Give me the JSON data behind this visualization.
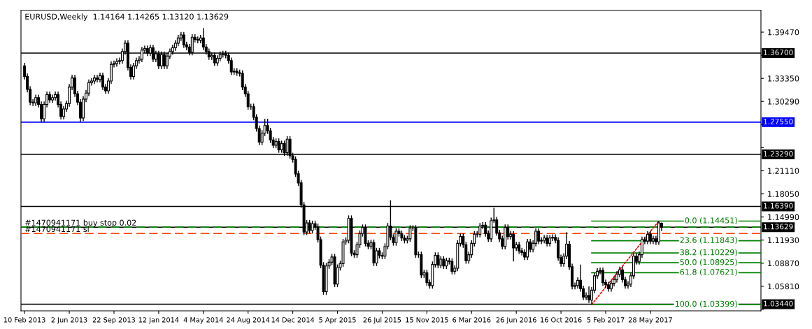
{
  "chart_data": {
    "type": "candlestick",
    "title": "EURUSD,Weekly  1.14164 1.14265 1.13120 1.13629",
    "color": "#000000",
    "x": [
      "2013-02-10",
      "2013-02-17",
      "2013-02-24",
      "2013-03-03",
      "2013-03-10",
      "2013-03-17",
      "2013-03-24",
      "2013-03-31",
      "2013-04-07",
      "2013-04-14",
      "2013-04-21",
      "2013-04-28",
      "2013-05-05",
      "2013-05-12",
      "2013-05-19",
      "2013-05-26",
      "2013-06-02",
      "2013-06-09",
      "2013-06-16",
      "2013-06-23",
      "2013-06-30",
      "2013-07-07",
      "2013-07-14",
      "2013-07-21",
      "2013-07-28",
      "2013-08-04",
      "2013-08-11",
      "2013-08-18",
      "2013-08-25",
      "2013-09-01",
      "2013-09-08",
      "2013-09-15",
      "2013-09-22",
      "2013-09-29",
      "2013-10-06",
      "2013-10-13",
      "2013-10-20",
      "2013-10-27",
      "2013-11-03",
      "2013-11-10",
      "2013-11-17",
      "2013-11-24",
      "2013-12-01",
      "2013-12-08",
      "2013-12-15",
      "2013-12-22",
      "2013-12-29",
      "2014-01-05",
      "2014-01-12",
      "2014-01-19",
      "2014-01-26",
      "2014-02-02",
      "2014-02-09",
      "2014-02-16",
      "2014-02-23",
      "2014-03-02",
      "2014-03-09",
      "2014-03-16",
      "2014-03-23",
      "2014-03-30",
      "2014-04-06",
      "2014-04-13",
      "2014-04-20",
      "2014-04-27",
      "2014-05-04",
      "2014-05-11",
      "2014-05-18",
      "2014-05-25",
      "2014-06-01",
      "2014-06-08",
      "2014-06-15",
      "2014-06-22",
      "2014-06-29",
      "2014-07-06",
      "2014-07-13",
      "2014-07-20",
      "2014-07-27",
      "2014-08-03",
      "2014-08-10",
      "2014-08-17",
      "2014-08-24",
      "2014-08-31",
      "2014-09-07",
      "2014-09-14",
      "2014-09-21",
      "2014-09-28",
      "2014-10-05",
      "2014-10-12",
      "2014-10-19",
      "2014-10-26",
      "2014-11-02",
      "2014-11-09",
      "2014-11-16",
      "2014-11-23",
      "2014-11-30",
      "2014-12-07",
      "2014-12-14",
      "2014-12-21",
      "2014-12-28",
      "2015-01-04",
      "2015-01-11",
      "2015-01-18",
      "2015-01-25",
      "2015-02-01",
      "2015-02-08",
      "2015-02-15",
      "2015-02-22",
      "2015-03-01",
      "2015-03-08",
      "2015-03-15",
      "2015-03-22",
      "2015-03-29",
      "2015-04-05",
      "2015-04-12",
      "2015-04-19",
      "2015-04-26",
      "2015-05-03",
      "2015-05-10",
      "2015-05-17",
      "2015-05-24",
      "2015-05-31",
      "2015-06-07",
      "2015-06-14",
      "2015-06-21",
      "2015-06-28",
      "2015-07-05",
      "2015-07-12",
      "2015-07-19",
      "2015-07-26",
      "2015-08-02",
      "2015-08-09",
      "2015-08-16",
      "2015-08-23",
      "2015-08-30",
      "2015-09-06",
      "2015-09-13",
      "2015-09-20",
      "2015-09-27",
      "2015-10-04",
      "2015-10-11",
      "2015-10-18",
      "2015-10-25",
      "2015-11-01",
      "2015-11-08",
      "2015-11-15",
      "2015-11-22",
      "2015-11-29",
      "2015-12-06",
      "2015-12-13",
      "2015-12-20",
      "2015-12-27",
      "2016-01-03",
      "2016-01-10",
      "2016-01-17",
      "2016-01-24",
      "2016-01-31",
      "2016-02-07",
      "2016-02-14",
      "2016-02-21",
      "2016-02-28",
      "2016-03-06",
      "2016-03-13",
      "2016-03-20",
      "2016-03-27",
      "2016-04-03",
      "2016-04-10",
      "2016-04-17",
      "2016-04-24",
      "2016-05-01",
      "2016-05-08",
      "2016-05-15",
      "2016-05-22",
      "2016-05-29",
      "2016-06-05",
      "2016-06-12",
      "2016-06-19",
      "2016-06-26",
      "2016-07-03",
      "2016-07-10",
      "2016-07-17",
      "2016-07-24",
      "2016-07-31",
      "2016-08-07",
      "2016-08-14",
      "2016-08-21",
      "2016-08-28",
      "2016-09-04",
      "2016-09-11",
      "2016-09-18",
      "2016-09-25",
      "2016-10-02",
      "2016-10-09",
      "2016-10-16",
      "2016-10-23",
      "2016-10-30",
      "2016-11-06",
      "2016-11-13",
      "2016-11-20",
      "2016-11-27",
      "2016-12-04",
      "2016-12-11",
      "2016-12-18",
      "2016-12-25",
      "2017-01-01",
      "2017-01-08",
      "2017-01-15",
      "2017-01-22",
      "2017-01-29",
      "2017-02-05",
      "2017-02-12",
      "2017-02-19",
      "2017-02-26",
      "2017-03-05",
      "2017-03-12",
      "2017-03-19",
      "2017-03-26",
      "2017-04-02",
      "2017-04-09",
      "2017-04-16",
      "2017-04-23",
      "2017-04-30",
      "2017-05-07",
      "2017-05-14",
      "2017-05-21",
      "2017-05-28",
      "2017-06-04",
      "2017-06-11",
      "2017-06-18",
      "2017-06-25"
    ],
    "ohlc": [
      [
        1.35,
        1.354,
        1.332,
        1.336
      ],
      [
        1.336,
        1.34,
        1.315,
        1.319
      ],
      [
        1.319,
        1.323,
        1.298,
        1.302
      ],
      [
        1.302,
        1.306,
        1.297,
        1.301
      ],
      [
        1.301,
        1.312,
        1.297,
        1.308
      ],
      [
        1.308,
        1.312,
        1.295,
        1.299
      ],
      [
        1.299,
        1.303,
        1.276,
        1.28
      ],
      [
        1.28,
        1.303,
        1.276,
        1.299
      ],
      [
        1.299,
        1.316,
        1.295,
        1.312
      ],
      [
        1.312,
        1.316,
        1.301,
        1.305
      ],
      [
        1.305,
        1.312,
        1.301,
        1.308
      ],
      [
        1.308,
        1.316,
        1.304,
        1.312
      ],
      [
        1.312,
        1.316,
        1.295,
        1.299
      ],
      [
        1.299,
        1.303,
        1.279,
        1.283
      ],
      [
        1.283,
        1.297,
        1.279,
        1.293
      ],
      [
        1.293,
        1.304,
        1.289,
        1.3
      ],
      [
        1.3,
        1.326,
        1.296,
        1.322
      ],
      [
        1.322,
        1.338,
        1.318,
        1.334
      ],
      [
        1.334,
        1.338,
        1.309,
        1.313
      ],
      [
        1.313,
        1.317,
        1.298,
        1.302
      ],
      [
        1.302,
        1.306,
        1.276,
        1.281
      ],
      [
        1.281,
        1.31,
        1.277,
        1.306
      ],
      [
        1.306,
        1.318,
        1.302,
        1.314
      ],
      [
        1.314,
        1.332,
        1.31,
        1.328
      ],
      [
        1.328,
        1.334,
        1.324,
        1.33
      ],
      [
        1.33,
        1.338,
        1.326,
        1.334
      ],
      [
        1.334,
        1.338,
        1.328,
        1.332
      ],
      [
        1.332,
        1.341,
        1.328,
        1.337
      ],
      [
        1.337,
        1.341,
        1.318,
        1.322
      ],
      [
        1.322,
        1.326,
        1.313,
        1.317
      ],
      [
        1.317,
        1.334,
        1.313,
        1.33
      ],
      [
        1.33,
        1.356,
        1.326,
        1.352
      ],
      [
        1.352,
        1.357,
        1.348,
        1.353
      ],
      [
        1.353,
        1.36,
        1.349,
        1.356
      ],
      [
        1.356,
        1.361,
        1.352,
        1.357
      ],
      [
        1.357,
        1.373,
        1.353,
        1.369
      ],
      [
        1.369,
        1.384,
        1.365,
        1.38
      ],
      [
        1.38,
        1.384,
        1.344,
        1.348
      ],
      [
        1.348,
        1.352,
        1.332,
        1.336
      ],
      [
        1.336,
        1.354,
        1.332,
        1.35
      ],
      [
        1.35,
        1.361,
        1.346,
        1.357
      ],
      [
        1.357,
        1.363,
        1.353,
        1.359
      ],
      [
        1.359,
        1.375,
        1.355,
        1.371
      ],
      [
        1.371,
        1.377,
        1.367,
        1.373
      ],
      [
        1.373,
        1.377,
        1.363,
        1.367
      ],
      [
        1.367,
        1.378,
        1.363,
        1.374
      ],
      [
        1.374,
        1.378,
        1.355,
        1.359
      ],
      [
        1.359,
        1.37,
        1.355,
        1.366
      ],
      [
        1.366,
        1.37,
        1.346,
        1.35
      ],
      [
        1.35,
        1.369,
        1.346,
        1.365
      ],
      [
        1.365,
        1.369,
        1.346,
        1.35
      ],
      [
        1.35,
        1.367,
        1.346,
        1.363
      ],
      [
        1.363,
        1.373,
        1.359,
        1.369
      ],
      [
        1.369,
        1.378,
        1.365,
        1.374
      ],
      [
        1.374,
        1.384,
        1.37,
        1.38
      ],
      [
        1.38,
        1.391,
        1.376,
        1.387
      ],
      [
        1.387,
        1.395,
        1.383,
        1.391
      ],
      [
        1.391,
        1.395,
        1.374,
        1.378
      ],
      [
        1.378,
        1.382,
        1.371,
        1.375
      ],
      [
        1.375,
        1.379,
        1.364,
        1.368
      ],
      [
        1.368,
        1.392,
        1.364,
        1.388
      ],
      [
        1.388,
        1.392,
        1.381,
        1.385
      ],
      [
        1.385,
        1.389,
        1.38,
        1.384
      ],
      [
        1.384,
        1.391,
        1.38,
        1.387
      ],
      [
        1.387,
        1.4,
        1.371,
        1.375
      ],
      [
        1.375,
        1.379,
        1.365,
        1.369
      ],
      [
        1.369,
        1.373,
        1.358,
        1.362
      ],
      [
        1.362,
        1.368,
        1.358,
        1.364
      ],
      [
        1.364,
        1.368,
        1.35,
        1.354
      ],
      [
        1.354,
        1.364,
        1.35,
        1.36
      ],
      [
        1.36,
        1.369,
        1.356,
        1.365
      ],
      [
        1.365,
        1.37,
        1.361,
        1.366
      ],
      [
        1.366,
        1.37,
        1.36,
        1.364
      ],
      [
        1.364,
        1.368,
        1.353,
        1.357
      ],
      [
        1.357,
        1.361,
        1.338,
        1.342
      ],
      [
        1.342,
        1.347,
        1.338,
        1.343
      ],
      [
        1.343,
        1.347,
        1.337,
        1.341
      ],
      [
        1.341,
        1.345,
        1.336,
        1.34
      ],
      [
        1.34,
        1.344,
        1.318,
        1.322
      ],
      [
        1.322,
        1.326,
        1.309,
        1.313
      ],
      [
        1.313,
        1.317,
        1.292,
        1.296
      ],
      [
        1.296,
        1.3,
        1.292,
        1.296
      ],
      [
        1.296,
        1.3,
        1.278,
        1.282
      ],
      [
        1.282,
        1.286,
        1.263,
        1.267
      ],
      [
        1.267,
        1.271,
        1.245,
        1.249
      ],
      [
        1.249,
        1.265,
        1.245,
        1.261
      ],
      [
        1.261,
        1.28,
        1.257,
        1.271
      ],
      [
        1.271,
        1.28,
        1.26,
        1.264
      ],
      [
        1.264,
        1.268,
        1.248,
        1.252
      ],
      [
        1.252,
        1.256,
        1.241,
        1.245
      ],
      [
        1.245,
        1.254,
        1.241,
        1.25
      ],
      [
        1.25,
        1.254,
        1.235,
        1.239
      ],
      [
        1.239,
        1.251,
        1.235,
        1.247
      ],
      [
        1.247,
        1.251,
        1.231,
        1.235
      ],
      [
        1.235,
        1.257,
        1.231,
        1.253
      ],
      [
        1.253,
        1.257,
        1.227,
        1.231
      ],
      [
        1.231,
        1.235,
        1.222,
        1.226
      ],
      [
        1.226,
        1.23,
        1.203,
        1.207
      ],
      [
        1.207,
        1.211,
        1.191,
        1.195
      ],
      [
        1.195,
        1.199,
        1.162,
        1.166
      ],
      [
        1.166,
        1.17,
        1.126,
        1.13
      ],
      [
        1.13,
        1.146,
        1.126,
        1.142
      ],
      [
        1.142,
        1.146,
        1.128,
        1.132
      ],
      [
        1.132,
        1.145,
        1.128,
        1.141
      ],
      [
        1.141,
        1.145,
        1.133,
        1.137
      ],
      [
        1.137,
        1.141,
        1.116,
        1.12
      ],
      [
        1.12,
        1.124,
        1.082,
        1.086
      ],
      [
        1.086,
        1.09,
        1.047,
        1.051
      ],
      [
        1.051,
        1.089,
        1.047,
        1.085
      ],
      [
        1.085,
        1.094,
        1.081,
        1.09
      ],
      [
        1.09,
        1.101,
        1.086,
        1.097
      ],
      [
        1.097,
        1.101,
        1.057,
        1.061
      ],
      [
        1.061,
        1.087,
        1.057,
        1.083
      ],
      [
        1.083,
        1.092,
        1.079,
        1.088
      ],
      [
        1.088,
        1.121,
        1.084,
        1.117
      ],
      [
        1.117,
        1.123,
        1.113,
        1.119
      ],
      [
        1.119,
        1.152,
        1.115,
        1.148
      ],
      [
        1.148,
        1.152,
        1.098,
        1.102
      ],
      [
        1.102,
        1.106,
        1.096,
        1.1
      ],
      [
        1.1,
        1.117,
        1.096,
        1.113
      ],
      [
        1.113,
        1.132,
        1.109,
        1.128
      ],
      [
        1.128,
        1.14,
        1.124,
        1.136
      ],
      [
        1.136,
        1.14,
        1.111,
        1.115
      ],
      [
        1.115,
        1.119,
        1.107,
        1.111
      ],
      [
        1.111,
        1.12,
        1.107,
        1.116
      ],
      [
        1.116,
        1.12,
        1.085,
        1.089
      ],
      [
        1.089,
        1.109,
        1.085,
        1.105
      ],
      [
        1.105,
        1.109,
        1.095,
        1.099
      ],
      [
        1.099,
        1.103,
        1.094,
        1.098
      ],
      [
        1.098,
        1.115,
        1.094,
        1.111
      ],
      [
        1.111,
        1.142,
        1.107,
        1.138
      ],
      [
        1.138,
        1.172,
        1.119,
        1.123
      ],
      [
        1.123,
        1.127,
        1.112,
        1.116
      ],
      [
        1.116,
        1.135,
        1.112,
        1.131
      ],
      [
        1.131,
        1.135,
        1.124,
        1.128
      ],
      [
        1.128,
        1.132,
        1.118,
        1.122
      ],
      [
        1.122,
        1.126,
        1.115,
        1.119
      ],
      [
        1.119,
        1.125,
        1.115,
        1.121
      ],
      [
        1.121,
        1.139,
        1.117,
        1.135
      ],
      [
        1.135,
        1.139,
        1.131,
        1.135
      ],
      [
        1.135,
        1.139,
        1.096,
        1.1
      ],
      [
        1.1,
        1.104,
        1.096,
        1.1
      ],
      [
        1.1,
        1.104,
        1.069,
        1.073
      ],
      [
        1.073,
        1.08,
        1.069,
        1.076
      ],
      [
        1.076,
        1.08,
        1.059,
        1.063
      ],
      [
        1.063,
        1.067,
        1.055,
        1.059
      ],
      [
        1.059,
        1.091,
        1.055,
        1.087
      ],
      [
        1.087,
        1.103,
        1.083,
        1.099
      ],
      [
        1.099,
        1.103,
        1.082,
        1.086
      ],
      [
        1.086,
        1.098,
        1.082,
        1.094
      ],
      [
        1.094,
        1.098,
        1.081,
        1.085
      ],
      [
        1.085,
        1.096,
        1.081,
        1.092
      ],
      [
        1.092,
        1.096,
        1.087,
        1.091
      ],
      [
        1.091,
        1.095,
        1.074,
        1.078
      ],
      [
        1.078,
        1.086,
        1.074,
        1.082
      ],
      [
        1.082,
        1.119,
        1.078,
        1.115
      ],
      [
        1.115,
        1.128,
        1.111,
        1.124
      ],
      [
        1.124,
        1.128,
        1.109,
        1.113
      ],
      [
        1.113,
        1.117,
        1.088,
        1.092
      ],
      [
        1.092,
        1.104,
        1.088,
        1.1
      ],
      [
        1.1,
        1.119,
        1.096,
        1.115
      ],
      [
        1.115,
        1.131,
        1.111,
        1.127
      ],
      [
        1.127,
        1.131,
        1.123,
        1.127
      ],
      [
        1.127,
        1.142,
        1.123,
        1.138
      ],
      [
        1.138,
        1.143,
        1.134,
        1.139
      ],
      [
        1.139,
        1.143,
        1.124,
        1.128
      ],
      [
        1.128,
        1.132,
        1.117,
        1.121
      ],
      [
        1.121,
        1.149,
        1.117,
        1.145
      ],
      [
        1.145,
        1.162,
        1.142,
        1.146
      ],
      [
        1.146,
        1.15,
        1.125,
        1.129
      ],
      [
        1.129,
        1.133,
        1.117,
        1.121
      ],
      [
        1.121,
        1.125,
        1.107,
        1.111
      ],
      [
        1.111,
        1.14,
        1.107,
        1.136
      ],
      [
        1.136,
        1.14,
        1.12,
        1.124
      ],
      [
        1.124,
        1.131,
        1.12,
        1.127
      ],
      [
        1.127,
        1.131,
        1.091,
        1.109
      ],
      [
        1.109,
        1.117,
        1.105,
        1.113
      ],
      [
        1.113,
        1.117,
        1.101,
        1.105
      ],
      [
        1.105,
        1.109,
        1.099,
        1.103
      ],
      [
        1.103,
        1.107,
        1.093,
        1.097
      ],
      [
        1.097,
        1.121,
        1.093,
        1.117
      ],
      [
        1.117,
        1.121,
        1.103,
        1.107
      ],
      [
        1.107,
        1.119,
        1.103,
        1.115
      ],
      [
        1.115,
        1.135,
        1.111,
        1.131
      ],
      [
        1.131,
        1.135,
        1.114,
        1.118
      ],
      [
        1.118,
        1.123,
        1.114,
        1.119
      ],
      [
        1.119,
        1.126,
        1.115,
        1.122
      ],
      [
        1.122,
        1.126,
        1.111,
        1.115
      ],
      [
        1.115,
        1.126,
        1.111,
        1.122
      ],
      [
        1.122,
        1.127,
        1.118,
        1.123
      ],
      [
        1.123,
        1.127,
        1.115,
        1.119
      ],
      [
        1.119,
        1.123,
        1.092,
        1.096
      ],
      [
        1.096,
        1.1,
        1.084,
        1.088
      ],
      [
        1.088,
        1.102,
        1.084,
        1.098
      ],
      [
        1.098,
        1.13,
        1.094,
        1.114
      ],
      [
        1.114,
        1.118,
        1.08,
        1.084
      ],
      [
        1.084,
        1.088,
        1.054,
        1.058
      ],
      [
        1.058,
        1.063,
        1.054,
        1.059
      ],
      [
        1.059,
        1.07,
        1.055,
        1.066
      ],
      [
        1.066,
        1.087,
        1.051,
        1.055
      ],
      [
        1.055,
        1.059,
        1.04,
        1.044
      ],
      [
        1.044,
        1.05,
        1.04,
        1.046
      ],
      [
        1.046,
        1.058,
        1.036,
        1.04
      ],
      [
        1.04,
        1.057,
        1.034,
        1.053
      ],
      [
        1.053,
        1.076,
        1.049,
        1.072
      ],
      [
        1.072,
        1.082,
        1.068,
        1.078
      ],
      [
        1.078,
        1.083,
        1.074,
        1.079
      ],
      [
        1.079,
        1.083,
        1.059,
        1.063
      ],
      [
        1.063,
        1.067,
        1.056,
        1.06
      ],
      [
        1.06,
        1.064,
        1.051,
        1.055
      ],
      [
        1.055,
        1.066,
        1.051,
        1.062
      ],
      [
        1.062,
        1.071,
        1.058,
        1.067
      ],
      [
        1.067,
        1.078,
        1.063,
        1.074
      ],
      [
        1.074,
        1.084,
        1.07,
        1.08
      ],
      [
        1.08,
        1.084,
        1.063,
        1.067
      ],
      [
        1.067,
        1.071,
        1.055,
        1.059
      ],
      [
        1.059,
        1.065,
        1.055,
        1.061
      ],
      [
        1.061,
        1.076,
        1.057,
        1.072
      ],
      [
        1.072,
        1.102,
        1.068,
        1.098
      ],
      [
        1.098,
        1.102,
        1.087,
        1.091
      ],
      [
        1.091,
        1.104,
        1.087,
        1.1
      ],
      [
        1.1,
        1.124,
        1.096,
        1.12
      ],
      [
        1.12,
        1.124,
        1.114,
        1.118
      ],
      [
        1.118,
        1.131,
        1.114,
        1.127
      ],
      [
        1.127,
        1.131,
        1.114,
        1.118
      ],
      [
        1.118,
        1.125,
        1.114,
        1.121
      ],
      [
        1.121,
        1.125,
        1.113,
        1.117
      ],
      [
        1.117,
        1.1445,
        1.113,
        1.142
      ],
      [
        1.14164,
        1.14265,
        1.1312,
        1.13629
      ]
    ],
    "series": [
      {
        "type": "line",
        "name": "0.0 (1.14451)",
        "color": "#008000",
        "x": [
          "2017-01-01",
          "2018-03-01"
        ],
        "values": [
          1.14451,
          1.14451
        ]
      },
      {
        "type": "line",
        "name": "23.6 (1.11843)",
        "color": "#008000",
        "x": [
          "2017-01-01",
          "2018-03-01"
        ],
        "values": [
          1.11843,
          1.11843
        ]
      },
      {
        "type": "line",
        "name": "38.2 (1.10229)",
        "color": "#008000",
        "x": [
          "2017-01-01",
          "2018-03-01"
        ],
        "values": [
          1.10229,
          1.10229
        ]
      },
      {
        "type": "line",
        "name": "50.0 (1.08925)",
        "color": "#008000",
        "x": [
          "2017-01-01",
          "2018-03-01"
        ],
        "values": [
          1.08925,
          1.08925
        ]
      },
      {
        "type": "line",
        "name": "61.8 (1.07621)",
        "color": "#008000",
        "x": [
          "2017-01-01",
          "2018-03-01"
        ],
        "values": [
          1.07621,
          1.07621
        ]
      },
      {
        "type": "line",
        "name": "100.0 (1.03399)",
        "color": "#008000",
        "x": [
          "2017-01-01",
          "2018-03-01"
        ],
        "values": [
          1.03399,
          1.03399
        ]
      },
      {
        "type": "line",
        "color": "#ff0000",
        "line_style": "dotted",
        "x": [
          "2017-01-01",
          "2017-06-18"
        ],
        "values": [
          1.03399,
          1.14451
        ]
      }
    ],
    "ref_lines": [
      {
        "axis": "y",
        "value": 1.367,
        "label": "1.36700",
        "color": "#000000",
        "line_style": "solid"
      },
      {
        "axis": "y",
        "value": 1.2755,
        "label": "1.27550",
        "color": "#0000ff",
        "line_style": "solid"
      },
      {
        "axis": "y",
        "value": 1.2329,
        "label": "1.23290",
        "color": "#000000",
        "line_style": "solid"
      },
      {
        "axis": "y",
        "value": 1.1639,
        "label": "1.16390",
        "color": "#000000",
        "line_style": "solid"
      },
      {
        "axis": "y",
        "value": 1.13629,
        "label": "1.13629",
        "color": "#000000",
        "line_style": "solid"
      },
      {
        "axis": "y",
        "value": 1.1365,
        "label": "#1470941171 buy stop 0.02",
        "color": "#008000",
        "line_style": "dashed"
      },
      {
        "axis": "y",
        "value": 1.128,
        "label": "#1470941171 sl",
        "color": "#ff4500",
        "line_style": "dashed"
      },
      {
        "axis": "y",
        "value": 1.0344,
        "label": "1.03440",
        "color": "#000000",
        "line_style": "solid"
      }
    ],
    "xlim": [
      "2013-02-01",
      "2018-03-01"
    ],
    "xticks": [
      {
        "value": "2013-02-10",
        "label": "10 Feb 2013"
      },
      {
        "value": "2013-06-02",
        "label": "2 Jun 2013"
      },
      {
        "value": "2013-09-22",
        "label": "22 Sep 2013"
      },
      {
        "value": "2014-01-12",
        "label": "12 Jan 2014"
      },
      {
        "value": "2014-05-04",
        "label": "4 May 2014"
      },
      {
        "value": "2014-08-24",
        "label": "24 Aug 2014"
      },
      {
        "value": "2014-12-14",
        "label": "14 Dec 2014"
      },
      {
        "value": "2015-04-05",
        "label": "5 Apr 2015"
      },
      {
        "value": "2015-07-26",
        "label": "26 Jul 2015"
      },
      {
        "value": "2015-11-15",
        "label": "15 Nov 2015"
      },
      {
        "value": "2016-03-06",
        "label": "6 Mar 2016"
      },
      {
        "value": "2016-06-26",
        "label": "26 Jun 2016"
      },
      {
        "value": "2016-10-16",
        "label": "16 Oct 2016"
      },
      {
        "value": "2017-02-05",
        "label": "5 Feb 2017"
      },
      {
        "value": "2017-05-28",
        "label": "28 May 2017"
      }
    ],
    "ylim": [
      1.0256,
      1.4234
    ],
    "yticks": [
      {
        "value": 1.3947,
        "label": "1.39470"
      },
      {
        "value": 1.3641,
        "label": null
      },
      {
        "value": 1.3335,
        "label": "1.33350"
      },
      {
        "value": 1.3029,
        "label": "1.30290"
      },
      {
        "value": 1.2723,
        "label": null
      },
      {
        "value": 1.2417,
        "label": null
      },
      {
        "value": 1.2111,
        "label": "1.21110"
      },
      {
        "value": 1.1805,
        "label": "1.18050"
      },
      {
        "value": 1.1499,
        "label": "1.14990"
      },
      {
        "value": 1.1193,
        "label": "1.11930"
      },
      {
        "value": 1.0887,
        "label": "1.08870"
      },
      {
        "value": 1.0581,
        "label": "1.05810"
      },
      {
        "value": 1.0275,
        "label": null
      }
    ],
    "grid": false,
    "legend": false
  }
}
